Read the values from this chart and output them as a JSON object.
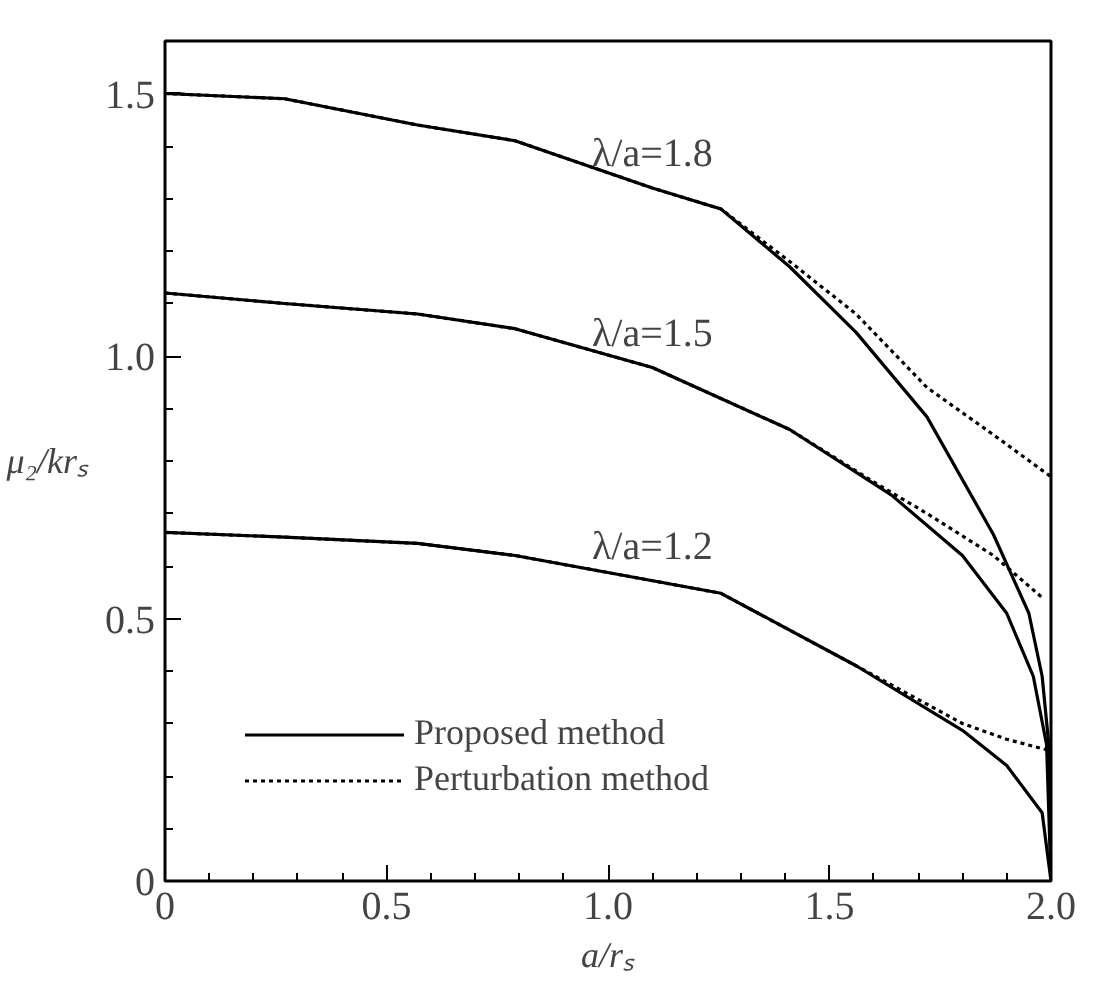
{
  "chart_data": {
    "type": "line",
    "xlabel": "a/rₛ",
    "ylabel": "μ₂/krₛ",
    "xlim": [
      0,
      2.0
    ],
    "ylim": [
      0,
      1.6
    ],
    "xticks": [
      0,
      {
        "value": 0.5,
        "label": "0.5"
      },
      {
        "value": 1.0,
        "label": "1.0"
      },
      {
        "value": 1.5,
        "label": "1.5"
      },
      {
        "value": 2.0,
        "label": "2.0"
      }
    ],
    "yticks": [
      0,
      {
        "value": 0.5,
        "label": "0.5"
      },
      {
        "value": 1.0,
        "label": "1.0"
      },
      {
        "value": 1.5,
        "label": "1.5"
      }
    ],
    "grid": false,
    "legend": "bottom left",
    "series": [
      {
        "name": "Proposed method",
        "color": "#000000",
        "line_style": "solid",
        "x": [
          0,
          0.27,
          0.57,
          0.79,
          1.1,
          1.255,
          1.41,
          1.56,
          1.72,
          1.87,
          1.95,
          1.98,
          1.995,
          2.0
        ],
        "values": [
          1.5,
          1.49,
          1.44,
          1.41,
          1.32,
          1.28,
          1.17,
          1.045,
          0.884,
          0.66,
          0.51,
          0.39,
          0.26,
          0.0
        ]
      },
      {
        "color": "#000000",
        "line_style": "solid",
        "x": [
          0,
          0.27,
          0.57,
          0.79,
          1.1,
          1.41,
          1.64,
          1.8,
          1.9,
          1.96,
          1.99,
          2.0
        ],
        "values": [
          1.12,
          1.1,
          1.08,
          1.052,
          0.978,
          0.86,
          0.735,
          0.62,
          0.51,
          0.39,
          0.26,
          0.0
        ]
      },
      {
        "color": "#000000",
        "line_style": "solid",
        "x": [
          0,
          0.27,
          0.57,
          0.79,
          1.255,
          1.56,
          1.8,
          1.9,
          1.98,
          2.0
        ],
        "values": [
          0.664,
          0.655,
          0.643,
          0.62,
          0.548,
          0.41,
          0.287,
          0.22,
          0.13,
          0.0
        ]
      },
      {
        "name": "Perturbation method",
        "color": "#000000",
        "line_style": "dashed",
        "x": [
          0,
          0.27,
          0.57,
          0.79,
          1.1,
          1.255,
          1.41,
          1.56,
          1.72,
          1.87,
          2.0
        ],
        "values": [
          1.5,
          1.49,
          1.44,
          1.41,
          1.32,
          1.28,
          1.18,
          1.08,
          0.94,
          0.85,
          0.77
        ]
      },
      {
        "color": "#000000",
        "line_style": "dashed",
        "x": [
          0,
          0.27,
          0.57,
          0.79,
          1.1,
          1.41,
          1.6,
          1.72,
          1.87,
          1.98
        ],
        "values": [
          1.12,
          1.1,
          1.08,
          1.052,
          0.978,
          0.86,
          0.76,
          0.7,
          0.62,
          0.54
        ]
      },
      {
        "color": "#000000",
        "line_style": "dashed",
        "x": [
          0,
          0.27,
          0.57,
          0.79,
          1.255,
          1.56,
          1.8,
          1.9,
          1.99
        ],
        "values": [
          0.664,
          0.655,
          0.643,
          0.62,
          0.548,
          0.41,
          0.3,
          0.27,
          0.25
        ]
      }
    ],
    "annotations": [
      "λ/a=1.8",
      "λ/a=1.5",
      "λ/a=1.2"
    ]
  }
}
